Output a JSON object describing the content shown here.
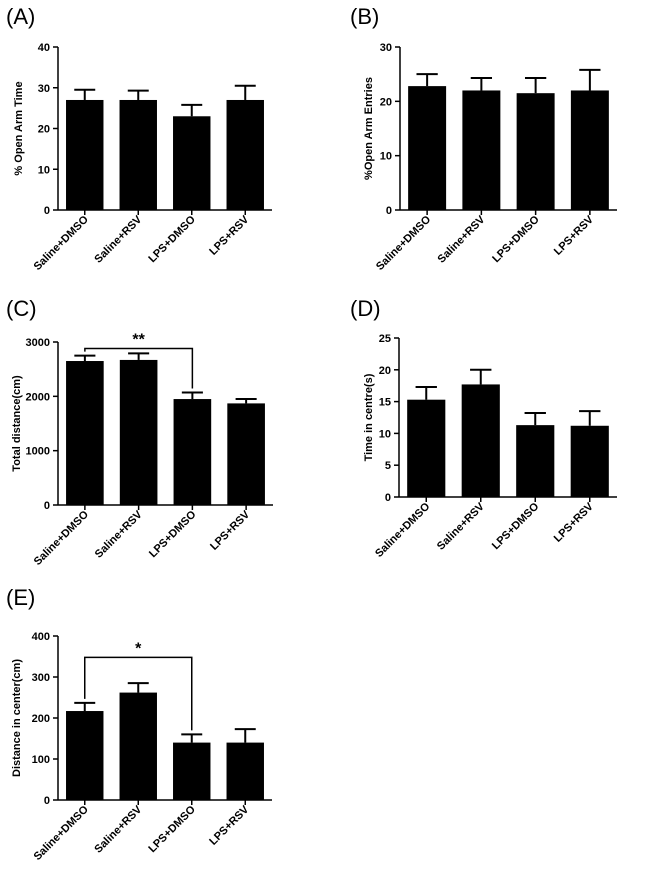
{
  "chart_data": [
    {
      "panel": "(A)",
      "type": "bar",
      "ylabel": "% Open Arm Time",
      "categories": [
        "Saline+DMSO",
        "Saline+RSV",
        "LPS+DMSO",
        "LPS+RSV"
      ],
      "values": [
        27,
        27,
        23,
        27
      ],
      "errors": [
        2.5,
        2.3,
        2.8,
        3.5
      ],
      "ylim": [
        0,
        40
      ],
      "yticks": [
        0,
        10,
        20,
        30,
        40
      ],
      "significance": []
    },
    {
      "panel": "(B)",
      "type": "bar",
      "ylabel": "%Open Arm Entries",
      "categories": [
        "Saline+DMSO",
        "Saline+RSV",
        "LPS+DMSO",
        "LPS+RSV"
      ],
      "values": [
        22.8,
        22,
        21.5,
        22
      ],
      "errors": [
        2.2,
        2.3,
        2.8,
        3.8
      ],
      "ylim": [
        0,
        30
      ],
      "yticks": [
        0,
        10,
        20,
        30
      ],
      "significance": []
    },
    {
      "panel": "(C)",
      "type": "bar",
      "ylabel": "Total distance(cm)",
      "categories": [
        "Saline+DMSO",
        "Saline+RSV",
        "LPS+DMSO",
        "LPS+RSV"
      ],
      "values": [
        2650,
        2670,
        1950,
        1870
      ],
      "errors": [
        100,
        120,
        120,
        80
      ],
      "ylim": [
        0,
        3000
      ],
      "yticks": [
        0,
        1000,
        2000,
        3000
      ],
      "significance": [
        {
          "from": 0,
          "to": 2,
          "label": "**",
          "at": 2880
        }
      ]
    },
    {
      "panel": "(D)",
      "type": "bar",
      "ylabel": "Time in centre(s)",
      "categories": [
        "Saline+DMSO",
        "Saline+RSV",
        "LPS+DMSO",
        "LPS+RSV"
      ],
      "values": [
        15.3,
        17.7,
        11.3,
        11.2
      ],
      "errors": [
        2,
        2.3,
        1.9,
        2.3
      ],
      "ylim": [
        0,
        25
      ],
      "yticks": [
        0,
        5,
        10,
        15,
        20,
        25
      ],
      "significance": []
    },
    {
      "panel": "(E)",
      "type": "bar",
      "ylabel": "Distance in center(cm)",
      "categories": [
        "Saline+DMSO",
        "Saline+RSV",
        "LPS+DMSO",
        "LPS+RSV"
      ],
      "values": [
        217,
        262,
        140,
        140
      ],
      "errors": [
        20,
        23,
        20,
        33
      ],
      "ylim": [
        0,
        400
      ],
      "yticks": [
        0,
        100,
        200,
        300,
        400
      ],
      "significance": [
        {
          "from": 0,
          "to": 2,
          "label": "*",
          "at": 348
        }
      ]
    }
  ]
}
